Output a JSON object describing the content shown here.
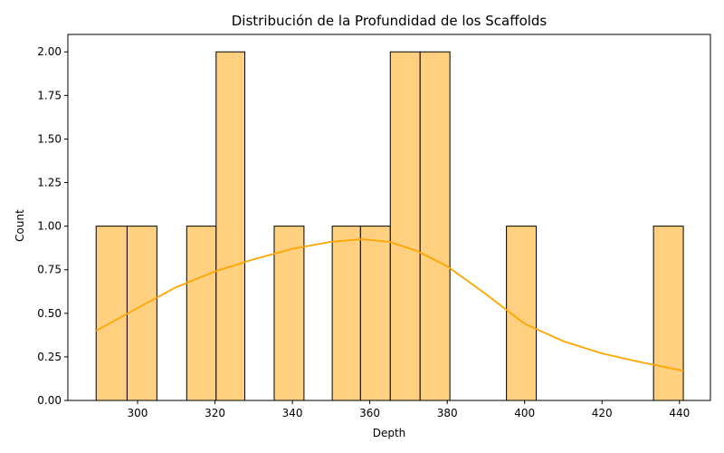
{
  "chart_data": {
    "type": "bar",
    "title": "Distribución de la Profundidad de los Scaffolds",
    "xlabel": "Depth",
    "ylabel": "Count",
    "xlim": [
      282,
      448
    ],
    "ylim": [
      0,
      2.1
    ],
    "x_ticks": [
      300,
      320,
      340,
      360,
      380,
      400,
      420,
      440
    ],
    "y_ticks": [
      0.0,
      0.25,
      0.5,
      0.75,
      1.0,
      1.25,
      1.5,
      1.75,
      2.0
    ],
    "y_tick_labels": [
      "0.00",
      "0.25",
      "0.50",
      "0.75",
      "1.00",
      "1.25",
      "1.50",
      "1.75",
      "2.00"
    ],
    "bins": [
      {
        "start": 289.3,
        "end": 297.3,
        "count": 1
      },
      {
        "start": 297.3,
        "end": 305.0,
        "count": 1
      },
      {
        "start": 312.7,
        "end": 320.3,
        "count": 1
      },
      {
        "start": 320.3,
        "end": 327.7,
        "count": 2
      },
      {
        "start": 335.3,
        "end": 343.0,
        "count": 1
      },
      {
        "start": 350.3,
        "end": 357.6,
        "count": 1
      },
      {
        "start": 357.6,
        "end": 365.3,
        "count": 1
      },
      {
        "start": 365.3,
        "end": 373.0,
        "count": 2
      },
      {
        "start": 373.0,
        "end": 380.7,
        "count": 2
      },
      {
        "start": 395.3,
        "end": 403.0,
        "count": 1
      },
      {
        "start": 433.3,
        "end": 441.0,
        "count": 1
      }
    ],
    "kde": {
      "x": [
        289.3,
        300,
        310,
        320,
        330,
        340,
        350,
        358,
        365,
        372,
        380,
        390,
        400,
        410,
        420,
        430,
        441
      ],
      "y": [
        0.4,
        0.53,
        0.65,
        0.74,
        0.81,
        0.87,
        0.91,
        0.925,
        0.91,
        0.86,
        0.77,
        0.61,
        0.44,
        0.34,
        0.27,
        0.22,
        0.17
      ]
    },
    "bar_fill": "#ffd080",
    "bar_stroke": "#000000",
    "kde_color": "#ffa500",
    "grid": false,
    "legend": "none"
  }
}
